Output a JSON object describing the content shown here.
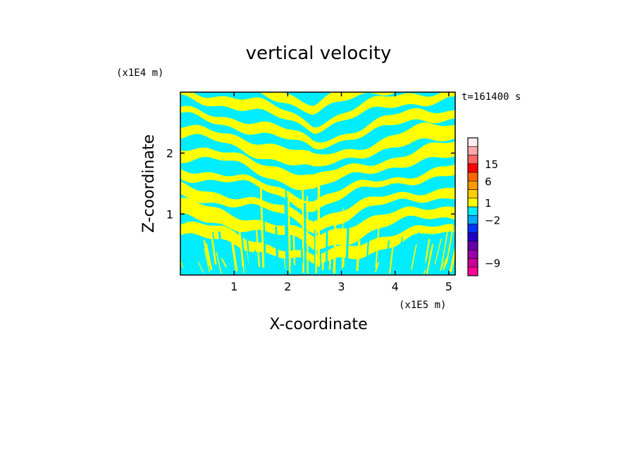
{
  "chart_data": {
    "type": "heatmap",
    "title": "vertical velocity",
    "xlabel": "X-coordinate",
    "ylabel": "Z-coordinate",
    "x_unit": "(x1E5 m)",
    "y_unit": "(x1E4 m)",
    "time_label": "t=161400 s",
    "xlim": [
      0,
      5.12
    ],
    "ylim": [
      0,
      3.0
    ],
    "x_ticks": [
      1,
      2,
      3,
      4,
      5
    ],
    "y_ticks": [
      1,
      2
    ],
    "field_description": "Alternating banded pattern of weak positive (yellow) and weak negative (cyan) vertical velocity; bands tilt upward toward both sides from a central V centered near x=2.5 (x1E5 m), with fine vertical streaks near the bottom",
    "field_colors": {
      "positive_weak": "#ffff00",
      "negative_weak": "#00ecff"
    },
    "colorbar": {
      "levels_labeled": [
        15,
        6,
        1,
        -2,
        -9
      ],
      "segment_colors": [
        "#ff0099",
        "#cc0099",
        "#9900aa",
        "#6600aa",
        "#2200cc",
        "#0033ff",
        "#00aaff",
        "#00ecff",
        "#ffff00",
        "#ffcc00",
        "#ff9900",
        "#ff6600",
        "#ff0000",
        "#ff6666",
        "#ffaaaa",
        "#ffeeee"
      ]
    }
  }
}
